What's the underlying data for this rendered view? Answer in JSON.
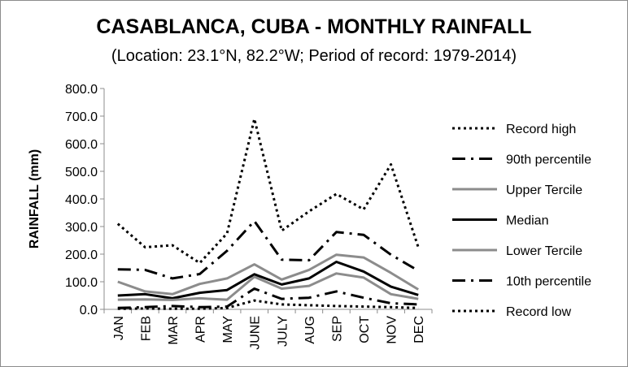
{
  "chart_data": {
    "type": "line",
    "title": "CASABLANCA, CUBA - MONTHLY RAINFALL",
    "subtitle": "(Location: 23.1°N, 82.2°W; Period of record: 1979-2014)",
    "ylabel": "RAINFALL (mm)",
    "xlabel": "",
    "ylim": [
      0,
      800
    ],
    "yticks": [
      "0.0",
      "100.0",
      "200.0",
      "300.0",
      "400.0",
      "500.0",
      "600.0",
      "700.0",
      "800.0"
    ],
    "categories": [
      "JAN",
      "FEB",
      "MAR",
      "APR",
      "MAY",
      "JUNE",
      "JULY",
      "AUG",
      "SEP",
      "OCT",
      "NOV",
      "DEC"
    ],
    "grid": false,
    "legend_position": "right",
    "series": [
      {
        "name": "Record high",
        "style": "dotted",
        "color": "#000000",
        "width": 3,
        "values": [
          310,
          225,
          232,
          168,
          275,
          690,
          285,
          355,
          418,
          362,
          525,
          225
        ]
      },
      {
        "name": "90th percentile",
        "style": "dashdot",
        "color": "#000000",
        "width": 3,
        "values": [
          145,
          143,
          112,
          128,
          212,
          320,
          180,
          178,
          280,
          270,
          198,
          140
        ]
      },
      {
        "name": "Upper Tercile",
        "style": "solid",
        "color": "#8c8c8c",
        "width": 3,
        "values": [
          100,
          65,
          55,
          92,
          112,
          163,
          108,
          143,
          198,
          188,
          132,
          72
        ]
      },
      {
        "name": "Median",
        "style": "solid",
        "color": "#000000",
        "width": 3,
        "values": [
          50,
          55,
          40,
          60,
          70,
          127,
          90,
          112,
          172,
          137,
          82,
          52
        ]
      },
      {
        "name": "Lower Tercile",
        "style": "solid",
        "color": "#8c8c8c",
        "width": 3,
        "values": [
          35,
          36,
          34,
          40,
          35,
          118,
          75,
          85,
          130,
          115,
          55,
          38
        ]
      },
      {
        "name": "10th percentile",
        "style": "dashdot",
        "color": "#000000",
        "width": 3,
        "values": [
          5,
          8,
          12,
          8,
          10,
          75,
          38,
          42,
          65,
          42,
          22,
          18
        ]
      },
      {
        "name": "Record low",
        "style": "dotted",
        "color": "#000000",
        "width": 3,
        "values": [
          2,
          3,
          2,
          2,
          5,
          32,
          18,
          15,
          12,
          10,
          8,
          5
        ]
      }
    ]
  }
}
